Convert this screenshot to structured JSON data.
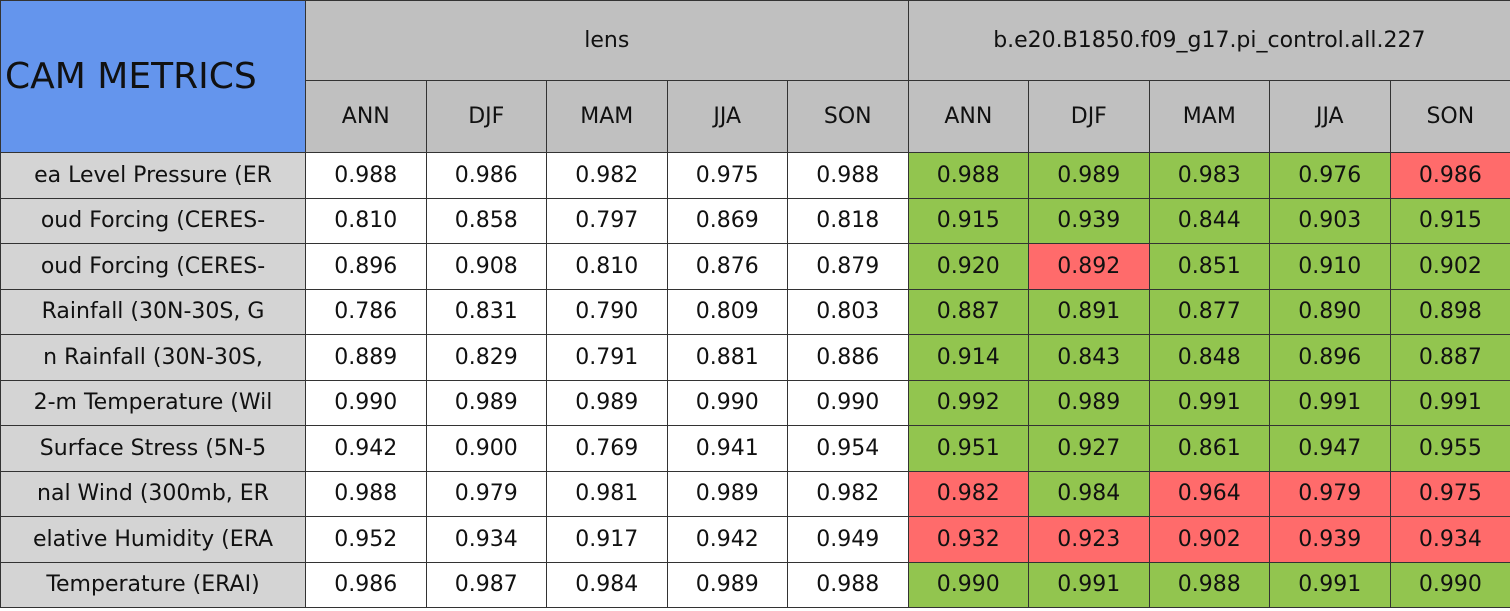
{
  "header": {
    "title": "CAM METRICS",
    "groups": [
      "lens",
      "b.e20.B1850.f09_g17.pi_control.all.227"
    ],
    "seasons": [
      [
        "ANN",
        "DJF",
        "MAM",
        "JJA",
        "SON"
      ],
      [
        "ANN",
        "DJF",
        "MAM",
        "JJA",
        "SON"
      ]
    ]
  },
  "table": {
    "rows": [
      {
        "label": "ea Level Pressure (ER",
        "lens": [
          "0.988",
          "0.986",
          "0.982",
          "0.975",
          "0.988"
        ],
        "case": [
          "0.988",
          "0.989",
          "0.983",
          "0.976",
          "0.986"
        ],
        "colors": [
          "#92c54f",
          "#92c54f",
          "#92c54f",
          "#92c54f",
          "#ff6b6b"
        ]
      },
      {
        "label": "oud Forcing (CERES-",
        "lens": [
          "0.810",
          "0.858",
          "0.797",
          "0.869",
          "0.818"
        ],
        "case": [
          "0.915",
          "0.939",
          "0.844",
          "0.903",
          "0.915"
        ],
        "colors": [
          "#92c54f",
          "#92c54f",
          "#92c54f",
          "#92c54f",
          "#92c54f"
        ]
      },
      {
        "label": "oud Forcing (CERES-",
        "lens": [
          "0.896",
          "0.908",
          "0.810",
          "0.876",
          "0.879"
        ],
        "case": [
          "0.920",
          "0.892",
          "0.851",
          "0.910",
          "0.902"
        ],
        "colors": [
          "#92c54f",
          "#ff6b6b",
          "#92c54f",
          "#92c54f",
          "#92c54f"
        ]
      },
      {
        "label": "Rainfall (30N-30S, G",
        "lens": [
          "0.786",
          "0.831",
          "0.790",
          "0.809",
          "0.803"
        ],
        "case": [
          "0.887",
          "0.891",
          "0.877",
          "0.890",
          "0.898"
        ],
        "colors": [
          "#92c54f",
          "#92c54f",
          "#92c54f",
          "#92c54f",
          "#92c54f"
        ]
      },
      {
        "label": "n Rainfall (30N-30S,",
        "lens": [
          "0.889",
          "0.829",
          "0.791",
          "0.881",
          "0.886"
        ],
        "case": [
          "0.914",
          "0.843",
          "0.848",
          "0.896",
          "0.887"
        ],
        "colors": [
          "#92c54f",
          "#92c54f",
          "#92c54f",
          "#92c54f",
          "#92c54f"
        ]
      },
      {
        "label": "2-m Temperature (Wil",
        "lens": [
          "0.990",
          "0.989",
          "0.989",
          "0.990",
          "0.990"
        ],
        "case": [
          "0.992",
          "0.989",
          "0.991",
          "0.991",
          "0.991"
        ],
        "colors": [
          "#92c54f",
          "#92c54f",
          "#92c54f",
          "#92c54f",
          "#92c54f"
        ]
      },
      {
        "label": "Surface Stress (5N-5",
        "lens": [
          "0.942",
          "0.900",
          "0.769",
          "0.941",
          "0.954"
        ],
        "case": [
          "0.951",
          "0.927",
          "0.861",
          "0.947",
          "0.955"
        ],
        "colors": [
          "#92c54f",
          "#92c54f",
          "#92c54f",
          "#92c54f",
          "#92c54f"
        ]
      },
      {
        "label": "nal Wind (300mb, ER",
        "lens": [
          "0.988",
          "0.979",
          "0.981",
          "0.989",
          "0.982"
        ],
        "case": [
          "0.982",
          "0.984",
          "0.964",
          "0.979",
          "0.975"
        ],
        "colors": [
          "#ff6b6b",
          "#92c54f",
          "#ff6b6b",
          "#ff6b6b",
          "#ff6b6b"
        ]
      },
      {
        "label": "elative Humidity (ERA",
        "lens": [
          "0.952",
          "0.934",
          "0.917",
          "0.942",
          "0.949"
        ],
        "case": [
          "0.932",
          "0.923",
          "0.902",
          "0.939",
          "0.934"
        ],
        "colors": [
          "#ff6b6b",
          "#ff6b6b",
          "#ff6b6b",
          "#ff6b6b",
          "#ff6b6b"
        ]
      },
      {
        "label": "Temperature (ERAI)",
        "lens": [
          "0.986",
          "0.987",
          "0.984",
          "0.989",
          "0.988"
        ],
        "case": [
          "0.990",
          "0.991",
          "0.988",
          "0.991",
          "0.990"
        ],
        "colors": [
          "#92c54f",
          "#92c54f",
          "#92c54f",
          "#92c54f",
          "#92c54f"
        ]
      }
    ]
  }
}
